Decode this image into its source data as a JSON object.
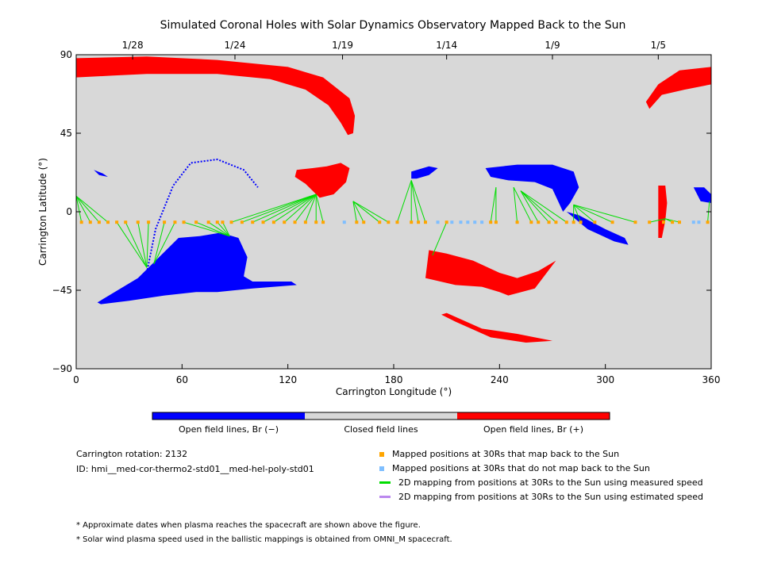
{
  "chart_data": {
    "type": "scatter",
    "title": "Simulated Coronal Holes with Solar Dynamics Observatory Mapped Back to the Sun",
    "xlabel": "Carrington Longitude (°)",
    "ylabel": "Carrington Latitude (°)",
    "xlim": [
      0,
      360
    ],
    "ylim": [
      -90,
      90
    ],
    "x_ticks": [
      0,
      60,
      120,
      180,
      240,
      300,
      360
    ],
    "y_ticks": [
      {
        "v": 90,
        "label": "90"
      },
      {
        "v": 45,
        "label": "45"
      },
      {
        "v": 0,
        "label": "0"
      },
      {
        "v": -45,
        "label": "−45"
      },
      {
        "v": -90,
        "label": "−90"
      }
    ],
    "top_axis": {
      "label_type": "dates",
      "ticks": [
        {
          "lon": 32,
          "label": "1/28"
        },
        {
          "lon": 90,
          "label": "1/24"
        },
        {
          "lon": 151,
          "label": "1/19"
        },
        {
          "lon": 210,
          "label": "1/14"
        },
        {
          "lon": 270,
          "label": "1/9"
        },
        {
          "lon": 330,
          "label": "1/5"
        }
      ]
    },
    "background_color": "#d8d8d8",
    "colorbar": {
      "segments": [
        {
          "label": "Open field lines, Br (−)",
          "color": "#0000ff"
        },
        {
          "label": "Closed field lines",
          "color": "#d8d8d8"
        },
        {
          "label": "Open field lines, Br (+)",
          "color": "#ff0000"
        }
      ]
    },
    "series": [
      {
        "name": "Mapped positions at 30Rs that map back to the Sun",
        "color": "#ffa500",
        "lat": -6,
        "lon": [
          3,
          8,
          13,
          18,
          23,
          28,
          35,
          41,
          50,
          56,
          61,
          68,
          75,
          80,
          83,
          88,
          94,
          100,
          106,
          112,
          118,
          124,
          130,
          136,
          140,
          159,
          163,
          172,
          177,
          182,
          190,
          194,
          198,
          210,
          235,
          238,
          250,
          258,
          262,
          268,
          272,
          278,
          282,
          286,
          294,
          304,
          317,
          325,
          333,
          338,
          342,
          358
        ]
      },
      {
        "name": "Mapped positions at 30Rs that do not map back to the Sun",
        "color": "#7fbfff",
        "lat": -6,
        "lon": [
          152,
          205,
          213,
          218,
          222,
          226,
          230,
          350,
          353
        ]
      },
      {
        "name": "2D mapping from positions at 30Rs to the Sun using measured speed",
        "color": "#00dd00"
      },
      {
        "name": "2D mapping from positions at 30Rs to the Sun using estimated speed",
        "color": "#bb88ee"
      }
    ],
    "mappings": [
      {
        "to": [
          0,
          9
        ],
        "from": [
          3,
          8,
          13,
          18
        ]
      },
      {
        "to": [
          40,
          -32
        ],
        "from": [
          23,
          28,
          35,
          41
        ]
      },
      {
        "to": [
          44,
          -30
        ],
        "from": [
          50,
          56
        ]
      },
      {
        "to": [
          87,
          -14
        ],
        "from": [
          61,
          68,
          75,
          80,
          83
        ]
      },
      {
        "to": [
          136,
          10
        ],
        "from": [
          88,
          94,
          100,
          106,
          112,
          118,
          124,
          130,
          136,
          140
        ]
      },
      {
        "to": [
          157,
          6
        ],
        "from": [
          159,
          163,
          172,
          177
        ]
      },
      {
        "to": [
          190,
          18
        ],
        "from": [
          182,
          190,
          194,
          198
        ]
      },
      {
        "to": [
          202,
          -25
        ],
        "from": [
          210
        ]
      },
      {
        "to": [
          238,
          14
        ],
        "from": [
          235,
          238
        ]
      },
      {
        "to": [
          248,
          14
        ],
        "from": [
          250,
          258
        ]
      },
      {
        "to": [
          252,
          12
        ],
        "from": [
          262,
          268,
          272,
          278
        ]
      },
      {
        "to": [
          282,
          4
        ],
        "from": [
          282,
          286,
          294,
          304,
          317
        ]
      },
      {
        "to": [
          334,
          -4
        ],
        "from": [
          325,
          333,
          338,
          342
        ]
      },
      {
        "to": [
          359,
          6
        ],
        "from": [
          358
        ]
      }
    ],
    "regions": [
      {
        "polarity": "positive",
        "points": [
          [
            0,
            88
          ],
          [
            40,
            89
          ],
          [
            80,
            87
          ],
          [
            120,
            83
          ],
          [
            140,
            77
          ],
          [
            155,
            65
          ],
          [
            158,
            55
          ],
          [
            157,
            45
          ],
          [
            154,
            44
          ],
          [
            150,
            51
          ],
          [
            143,
            61
          ],
          [
            130,
            70
          ],
          [
            110,
            76
          ],
          [
            80,
            79
          ],
          [
            40,
            79
          ],
          [
            20,
            78
          ],
          [
            0,
            77
          ]
        ]
      },
      {
        "polarity": "positive",
        "points": [
          [
            323,
            63
          ],
          [
            330,
            73
          ],
          [
            342,
            81
          ],
          [
            360,
            83
          ],
          [
            360,
            73
          ],
          [
            345,
            70
          ],
          [
            332,
            67
          ],
          [
            325,
            59
          ]
        ]
      },
      {
        "polarity": "positive",
        "points": [
          [
            125,
            24
          ],
          [
            134,
            25
          ],
          [
            142,
            26
          ],
          [
            150,
            28
          ],
          [
            155,
            25
          ],
          [
            153,
            17
          ],
          [
            146,
            10
          ],
          [
            138,
            8
          ],
          [
            130,
            16
          ],
          [
            124,
            20
          ]
        ]
      },
      {
        "polarity": "negative",
        "points": [
          [
            10,
            24
          ],
          [
            15,
            22
          ],
          [
            18,
            20
          ],
          [
            13,
            21
          ]
        ]
      },
      {
        "polarity": "negative",
        "points": [
          [
            190,
            23
          ],
          [
            200,
            26
          ],
          [
            205,
            25
          ],
          [
            200,
            21
          ],
          [
            193,
            19
          ],
          [
            190,
            19
          ]
        ]
      },
      {
        "polarity": "negative",
        "points": [
          [
            232,
            25
          ],
          [
            250,
            27
          ],
          [
            270,
            27
          ],
          [
            282,
            23
          ],
          [
            285,
            14
          ],
          [
            280,
            5
          ],
          [
            276,
            0
          ],
          [
            270,
            13
          ],
          [
            260,
            17
          ],
          [
            245,
            18
          ],
          [
            235,
            20
          ]
        ]
      },
      {
        "polarity": "negative",
        "points": [
          [
            278,
            0
          ],
          [
            290,
            -10
          ],
          [
            305,
            -17
          ],
          [
            313,
            -19
          ],
          [
            311,
            -15
          ],
          [
            300,
            -10
          ],
          [
            285,
            -2
          ]
        ]
      },
      {
        "polarity": "negative",
        "points": [
          [
            350,
            14
          ],
          [
            356,
            14
          ],
          [
            360,
            10
          ],
          [
            360,
            5
          ],
          [
            354,
            6
          ]
        ]
      },
      {
        "polarity": "negative",
        "points": [
          [
            12,
            -52
          ],
          [
            35,
            -38
          ],
          [
            45,
            -28
          ],
          [
            58,
            -15
          ],
          [
            70,
            -14
          ],
          [
            82,
            -12
          ],
          [
            92,
            -15
          ],
          [
            97,
            -26
          ],
          [
            95,
            -37
          ],
          [
            100,
            -40
          ],
          [
            122,
            -40
          ],
          [
            125,
            -42
          ],
          [
            100,
            -44
          ],
          [
            80,
            -46
          ],
          [
            68,
            -46
          ],
          [
            50,
            -48
          ],
          [
            30,
            -51
          ],
          [
            14,
            -53
          ]
        ]
      },
      {
        "polarity": "positive",
        "points": [
          [
            198,
            -38
          ],
          [
            215,
            -42
          ],
          [
            230,
            -43
          ],
          [
            240,
            -46
          ],
          [
            245,
            -48
          ],
          [
            260,
            -44
          ],
          [
            272,
            -28
          ],
          [
            262,
            -34
          ],
          [
            250,
            -38
          ],
          [
            240,
            -35
          ],
          [
            225,
            -28
          ],
          [
            210,
            -24
          ],
          [
            200,
            -22
          ]
        ]
      },
      {
        "polarity": "positive",
        "points": [
          [
            207,
            -59
          ],
          [
            215,
            -63
          ],
          [
            235,
            -72
          ],
          [
            255,
            -75
          ],
          [
            270,
            -74
          ],
          [
            250,
            -70
          ],
          [
            230,
            -67
          ],
          [
            210,
            -58
          ]
        ]
      },
      {
        "polarity": "positive",
        "points": [
          [
            330,
            15
          ],
          [
            334,
            15
          ],
          [
            335,
            5
          ],
          [
            334,
            -5
          ],
          [
            332,
            -15
          ],
          [
            330,
            -15
          ],
          [
            330,
            0
          ]
        ]
      }
    ]
  },
  "info": {
    "rotation": "Carrington rotation: 2132",
    "id": "ID: hmi__med-cor-thermo2-std01__med-hel-poly-std01"
  },
  "footnotes": [
    "* Approximate dates when plasma reaches the spacecraft are shown above the figure.",
    "* Solar wind plasma speed used in the ballistic mappings is obtained from OMNI_M spacecraft."
  ]
}
